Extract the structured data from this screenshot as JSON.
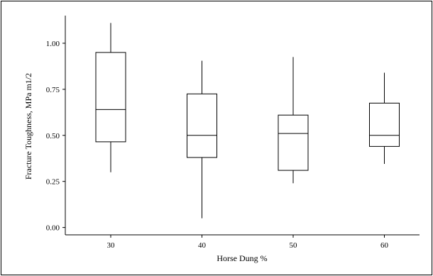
{
  "chart_data": {
    "type": "boxplot",
    "title": "",
    "xlabel": "Horse Dung %",
    "ylabel": "Fracture Toughness, MPa m1/2",
    "ylim": [
      -0.04,
      1.15
    ],
    "yticks": [
      0.0,
      0.25,
      0.5,
      0.75,
      1.0
    ],
    "ytick_labels": [
      "0.00",
      "0.25",
      "0.50",
      "0.75",
      "1.00"
    ],
    "categories": [
      "30",
      "40",
      "50",
      "60"
    ],
    "boxes": [
      {
        "category": "30",
        "min": 0.3,
        "q1": 0.465,
        "median": 0.64,
        "q3": 0.95,
        "max": 1.11
      },
      {
        "category": "40",
        "min": 0.05,
        "q1": 0.38,
        "median": 0.5,
        "q3": 0.725,
        "max": 0.905
      },
      {
        "category": "50",
        "min": 0.24,
        "q1": 0.31,
        "median": 0.51,
        "q3": 0.61,
        "max": 0.925
      },
      {
        "category": "60",
        "min": 0.345,
        "q1": 0.44,
        "median": 0.5,
        "q3": 0.675,
        "max": 0.84
      }
    ],
    "grid": false,
    "legend": "none"
  }
}
